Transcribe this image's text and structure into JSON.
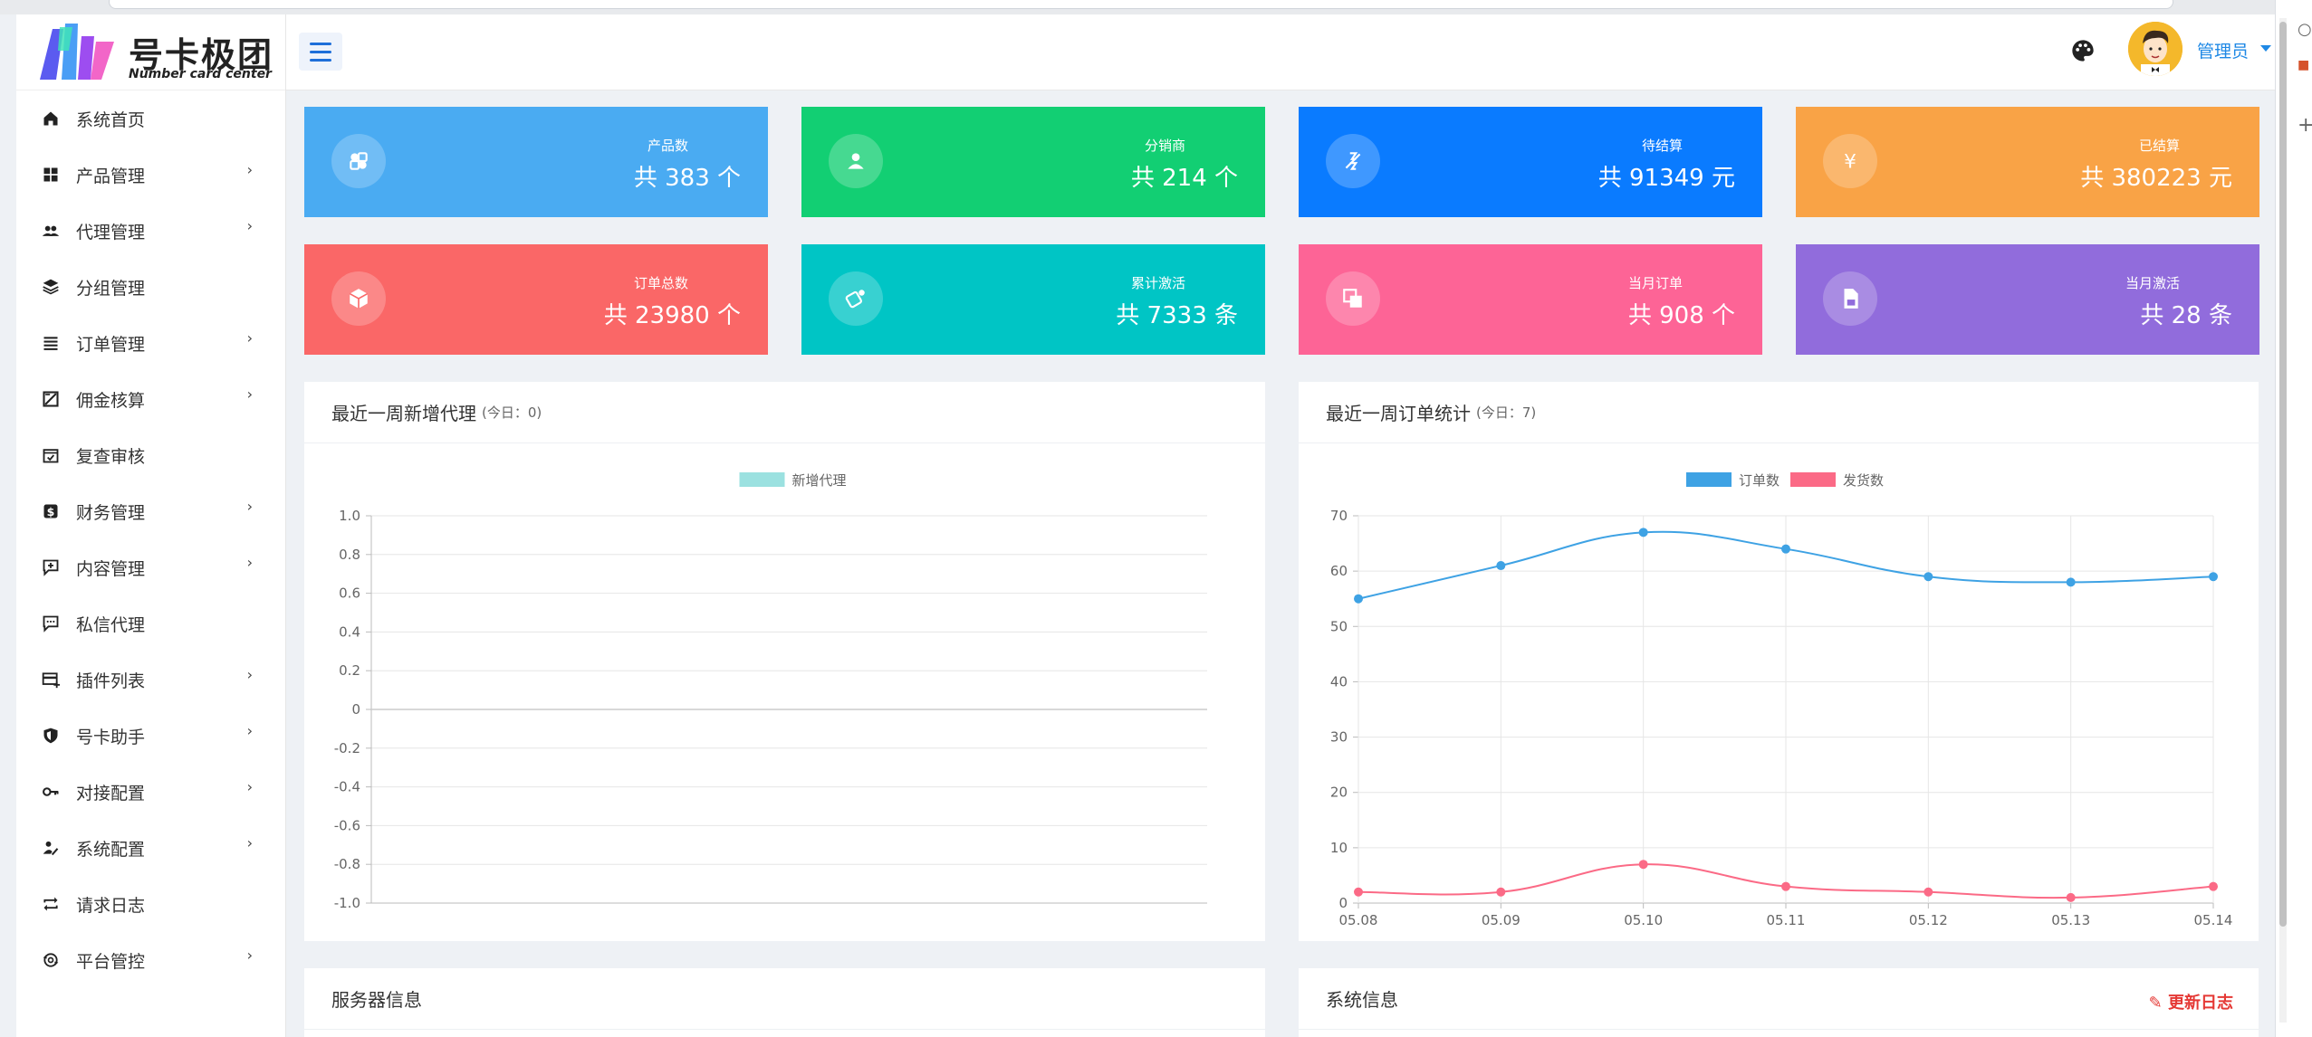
{
  "app": {
    "logo_title": "号卡极团",
    "logo_subtitle": "Number card center"
  },
  "sidebar": {
    "items": [
      {
        "label": "系统首页",
        "icon": "home-icon",
        "has_children": false
      },
      {
        "label": "产品管理",
        "icon": "grid-icon",
        "has_children": true
      },
      {
        "label": "代理管理",
        "icon": "users-icon",
        "has_children": true
      },
      {
        "label": "分组管理",
        "icon": "layers-icon",
        "has_children": false
      },
      {
        "label": "订单管理",
        "icon": "list-icon",
        "has_children": true
      },
      {
        "label": "佣金核算",
        "icon": "calculator-icon",
        "has_children": true
      },
      {
        "label": "复查审核",
        "icon": "calendar-check-icon",
        "has_children": false
      },
      {
        "label": "财务管理",
        "icon": "dollar-icon",
        "has_children": true
      },
      {
        "label": "内容管理",
        "icon": "message-plus-icon",
        "has_children": true
      },
      {
        "label": "私信代理",
        "icon": "chat-icon",
        "has_children": false
      },
      {
        "label": "插件列表",
        "icon": "card-plus-icon",
        "has_children": true
      },
      {
        "label": "号卡助手",
        "icon": "shield-icon",
        "has_children": true
      },
      {
        "label": "对接配置",
        "icon": "key-icon",
        "has_children": true
      },
      {
        "label": "系统配置",
        "icon": "user-edit-icon",
        "has_children": true
      },
      {
        "label": "请求日志",
        "icon": "repeat-icon",
        "has_children": false
      },
      {
        "label": "平台管控",
        "icon": "sync-icon",
        "has_children": true
      }
    ]
  },
  "header": {
    "user_name": "管理员"
  },
  "stats": [
    {
      "label": "产品数",
      "value": "共 383 个",
      "color": "#4aabf2",
      "icon": "puzzle-icon"
    },
    {
      "label": "分销商",
      "value": "共 214 个",
      "color": "#12cf73",
      "icon": "user-icon"
    },
    {
      "label": "待结算",
      "value": "共 91349 元",
      "color": "#0a7bff",
      "icon": "pending-icon"
    },
    {
      "label": "已结算",
      "value": "共 380223 元",
      "color": "#f9a346",
      "icon": "yen-icon"
    },
    {
      "label": "订单总数",
      "value": "共 23980 个",
      "color": "#fa6767",
      "icon": "cube-icon"
    },
    {
      "label": "累计激活",
      "value": "共 7333 条",
      "color": "#00c5c5",
      "icon": "activate-icon"
    },
    {
      "label": "当月订单",
      "value": "共 908 个",
      "color": "#fd6496",
      "icon": "copy-icon"
    },
    {
      "label": "当月激活",
      "value": "共 28 条",
      "color": "#916cdc",
      "icon": "sim-card-icon"
    }
  ],
  "panels": {
    "agents": {
      "title": "最近一周新增代理",
      "today": "(今日：0)"
    },
    "orders": {
      "title": "最近一周订单统计",
      "today": "(今日：7)"
    },
    "server": {
      "title": "服务器信息"
    },
    "system": {
      "title": "系统信息",
      "action": "更新日志"
    }
  },
  "chart_data": [
    {
      "type": "line",
      "x": [],
      "series": [
        {
          "name": "新增代理",
          "values": [],
          "color": "#9be1e0"
        }
      ],
      "ylim": [
        -1.0,
        1.0
      ],
      "yticks": [
        "1.0",
        "0.8",
        "0.6",
        "0.4",
        "0.2",
        "0",
        "-0.2",
        "-0.4",
        "-0.6",
        "-0.8",
        "-1.0"
      ],
      "grid": true,
      "legend": "top-center"
    },
    {
      "type": "line",
      "x": [
        "05.08",
        "05.09",
        "05.10",
        "05.11",
        "05.12",
        "05.13",
        "05.14"
      ],
      "series": [
        {
          "name": "订单数",
          "values": [
            55,
            61,
            67,
            64,
            59,
            58,
            59
          ],
          "color": "#3ea2e4"
        },
        {
          "name": "发货数",
          "values": [
            2,
            2,
            7,
            3,
            2,
            1,
            3
          ],
          "color": "#fb6a86"
        }
      ],
      "ylim": [
        0,
        70
      ],
      "yticks": [
        "0",
        "10",
        "20",
        "30",
        "40",
        "50",
        "60",
        "70"
      ],
      "grid": true,
      "legend": "top-center"
    }
  ]
}
